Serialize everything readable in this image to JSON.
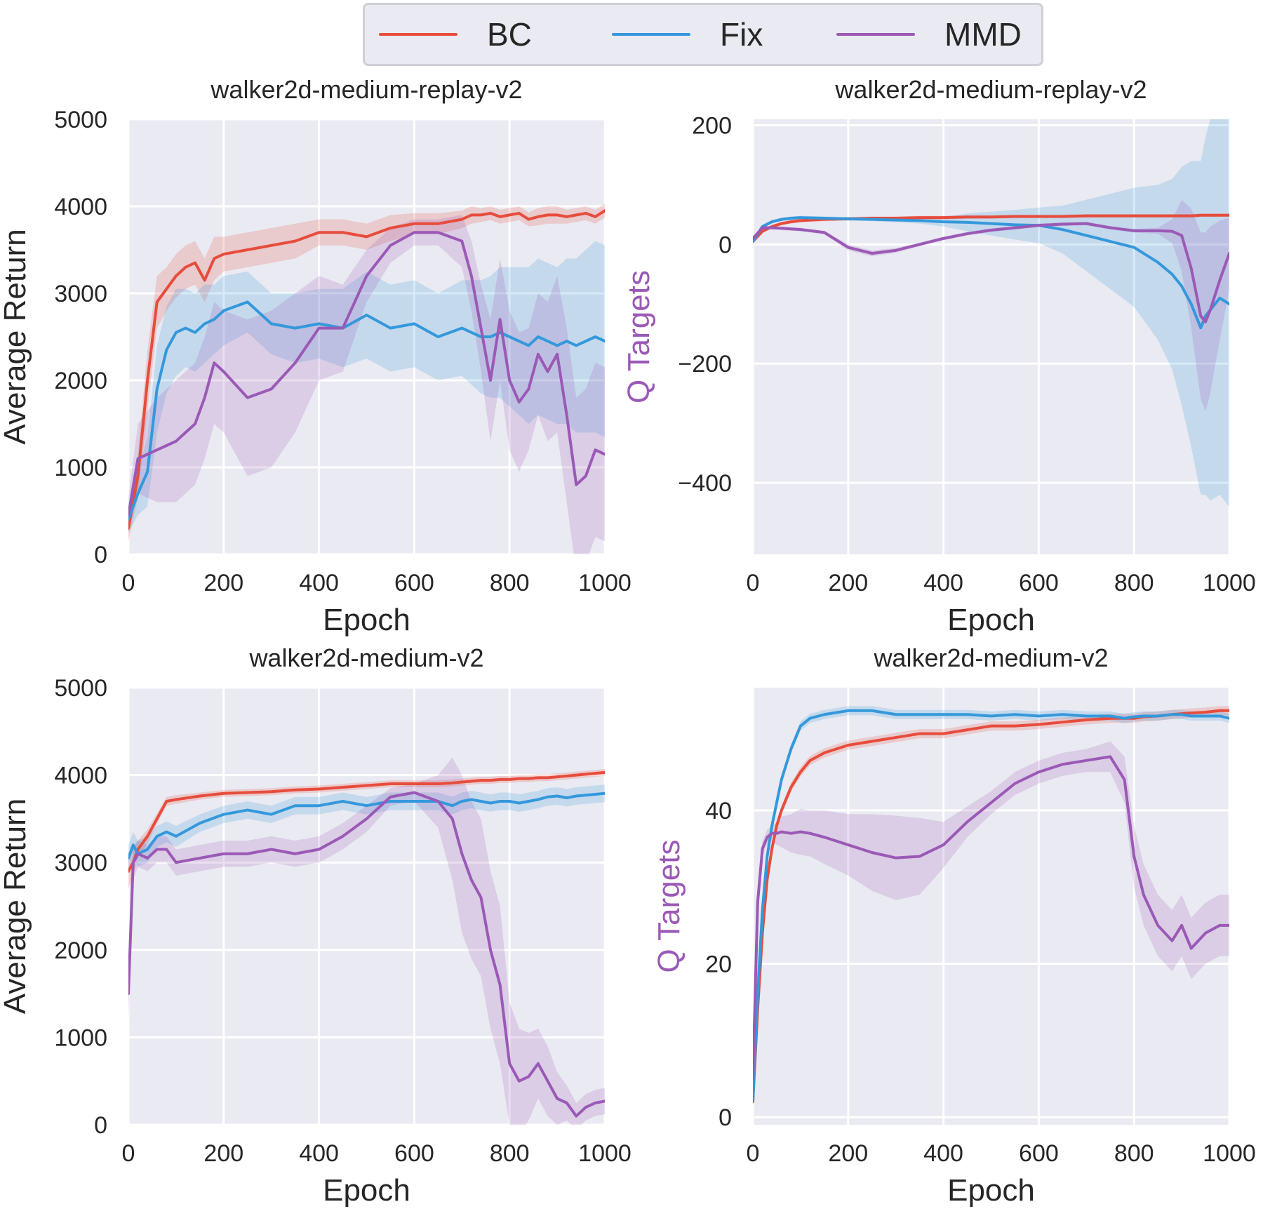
{
  "legend": {
    "placement": "top-center",
    "items": [
      {
        "label": "BC",
        "color": "#e74c3c"
      },
      {
        "label": "Fix",
        "color": "#3498db"
      },
      {
        "label": "MMD",
        "color": "#9b59b6"
      }
    ]
  },
  "chart_data": [
    {
      "type": "line",
      "title": "walker2d-medium-replay-v2",
      "xlabel": "Epoch",
      "ylabel": "Average Return",
      "ylabel_color": "#262626",
      "xlim": [
        0,
        1000
      ],
      "ylim": [
        0,
        5000
      ],
      "xticks": [
        0,
        200,
        400,
        600,
        800,
        1000
      ],
      "yticks": [
        0,
        1000,
        2000,
        3000,
        4000,
        5000
      ],
      "ytick_labels": [
        "0",
        "1000",
        "2000",
        "3000",
        "4000",
        "5000"
      ],
      "grid": true,
      "x": [
        0,
        20,
        40,
        60,
        80,
        100,
        120,
        140,
        160,
        180,
        200,
        250,
        300,
        350,
        400,
        450,
        500,
        550,
        600,
        650,
        700,
        720,
        740,
        760,
        780,
        800,
        820,
        840,
        860,
        880,
        900,
        920,
        940,
        960,
        980,
        1000
      ],
      "series": [
        {
          "name": "BC",
          "color": "#e74c3c",
          "values": [
            300,
            900,
            2000,
            2900,
            3050,
            3200,
            3300,
            3350,
            3150,
            3400,
            3450,
            3500,
            3550,
            3600,
            3700,
            3700,
            3650,
            3750,
            3800,
            3800,
            3850,
            3900,
            3900,
            3920,
            3880,
            3900,
            3920,
            3850,
            3880,
            3900,
            3900,
            3880,
            3900,
            3920,
            3880,
            3950
          ],
          "band": [
            150,
            250,
            350,
            300,
            250,
            250,
            250,
            250,
            250,
            250,
            200,
            200,
            200,
            200,
            150,
            150,
            150,
            150,
            120,
            120,
            100,
            100,
            80,
            80,
            80,
            80,
            80,
            80,
            100,
            100,
            100,
            80,
            80,
            80,
            80,
            80
          ]
        },
        {
          "name": "Fix",
          "color": "#3498db",
          "values": [
            400,
            700,
            950,
            1900,
            2350,
            2550,
            2600,
            2550,
            2650,
            2700,
            2800,
            2900,
            2650,
            2600,
            2650,
            2600,
            2750,
            2600,
            2650,
            2500,
            2600,
            2550,
            2500,
            2500,
            2550,
            2500,
            2450,
            2400,
            2500,
            2450,
            2400,
            2450,
            2400,
            2450,
            2500,
            2450
          ],
          "band": [
            150,
            250,
            400,
            500,
            500,
            500,
            450,
            450,
            450,
            400,
            400,
            350,
            350,
            400,
            400,
            450,
            500,
            500,
            500,
            500,
            550,
            600,
            650,
            700,
            750,
            800,
            850,
            900,
            900,
            900,
            900,
            950,
            1000,
            1050,
            1100,
            1100
          ]
        },
        {
          "name": "MMD",
          "color": "#9b59b6",
          "values": [
            450,
            1100,
            1150,
            1200,
            1250,
            1300,
            1400,
            1500,
            1800,
            2200,
            2100,
            1800,
            1900,
            2200,
            2600,
            2600,
            3200,
            3550,
            3700,
            3700,
            3600,
            3200,
            2600,
            2000,
            2700,
            2000,
            1750,
            1900,
            2300,
            2100,
            2300,
            1600,
            800,
            900,
            1200,
            1150
          ],
          "band": [
            200,
            400,
            500,
            600,
            650,
            700,
            700,
            700,
            700,
            700,
            700,
            900,
            900,
            800,
            600,
            500,
            300,
            200,
            150,
            150,
            300,
            400,
            500,
            700,
            700,
            800,
            800,
            700,
            700,
            800,
            900,
            1000,
            1000,
            1000,
            1000,
            1000
          ]
        }
      ]
    },
    {
      "type": "line",
      "title": "walker2d-medium-replay-v2",
      "xlabel": "Epoch",
      "ylabel": "Q Targets",
      "ylabel_color": "#9b59b6",
      "xlim": [
        0,
        1000
      ],
      "ylim": [
        -520,
        210
      ],
      "xticks": [
        0,
        200,
        400,
        600,
        800,
        1000
      ],
      "yticks": [
        -400,
        -200,
        0,
        200
      ],
      "ytick_labels": [
        "−400",
        "−200",
        "0",
        "200"
      ],
      "grid": true,
      "x": [
        0,
        20,
        40,
        60,
        80,
        100,
        150,
        200,
        250,
        300,
        350,
        400,
        450,
        500,
        550,
        600,
        650,
        700,
        750,
        800,
        850,
        880,
        900,
        920,
        940,
        950,
        960,
        980,
        1000
      ],
      "series": [
        {
          "name": "BC",
          "color": "#e74c3c",
          "values": [
            5,
            22,
            30,
            35,
            38,
            40,
            42,
            43,
            44,
            44,
            45,
            45,
            46,
            46,
            47,
            47,
            47,
            48,
            48,
            48,
            48,
            48,
            48,
            48,
            49,
            49,
            49,
            49,
            49
          ],
          "band": [
            3,
            3,
            3,
            3,
            3,
            3,
            3,
            3,
            3,
            3,
            3,
            3,
            3,
            3,
            3,
            3,
            3,
            3,
            3,
            3,
            3,
            3,
            3,
            3,
            3,
            3,
            3,
            3,
            3
          ]
        },
        {
          "name": "Fix",
          "color": "#3498db",
          "values": [
            5,
            30,
            38,
            42,
            44,
            45,
            44,
            43,
            42,
            41,
            40,
            38,
            37,
            35,
            33,
            32,
            25,
            15,
            5,
            -5,
            -30,
            -50,
            -70,
            -100,
            -140,
            -120,
            -110,
            -90,
            -100
          ],
          "band": [
            3,
            3,
            3,
            3,
            3,
            3,
            3,
            3,
            3,
            4,
            5,
            8,
            15,
            20,
            25,
            30,
            40,
            60,
            80,
            100,
            130,
            160,
            200,
            240,
            280,
            300,
            320,
            330,
            340
          ]
        },
        {
          "name": "MMD",
          "color": "#9b59b6",
          "values": [
            10,
            28,
            28,
            27,
            26,
            25,
            20,
            -5,
            -15,
            -10,
            0,
            10,
            18,
            24,
            28,
            32,
            34,
            35,
            28,
            23,
            23,
            22,
            15,
            -40,
            -120,
            -130,
            -110,
            -60,
            -15
          ],
          "band": [
            3,
            3,
            3,
            3,
            3,
            3,
            3,
            5,
            5,
            4,
            3,
            3,
            3,
            3,
            3,
            3,
            3,
            3,
            3,
            3,
            5,
            20,
            60,
            100,
            140,
            150,
            140,
            100,
            60
          ]
        }
      ]
    },
    {
      "type": "line",
      "title": "walker2d-medium-v2",
      "xlabel": "Epoch",
      "ylabel": "Average Return",
      "ylabel_color": "#262626",
      "xlim": [
        0,
        1000
      ],
      "ylim": [
        0,
        5000
      ],
      "xticks": [
        0,
        200,
        400,
        600,
        800,
        1000
      ],
      "yticks": [
        0,
        1000,
        2000,
        3000,
        4000,
        5000
      ],
      "ytick_labels": [
        "0",
        "1000",
        "2000",
        "3000",
        "4000",
        "5000"
      ],
      "grid": true,
      "x": [
        0,
        10,
        20,
        40,
        60,
        80,
        100,
        150,
        200,
        250,
        300,
        350,
        400,
        450,
        500,
        550,
        600,
        650,
        680,
        700,
        720,
        740,
        760,
        780,
        800,
        820,
        840,
        860,
        880,
        900,
        920,
        940,
        960,
        980,
        1000
      ],
      "series": [
        {
          "name": "BC",
          "color": "#e74c3c",
          "values": [
            2900,
            3000,
            3150,
            3300,
            3500,
            3700,
            3720,
            3760,
            3790,
            3800,
            3810,
            3830,
            3840,
            3860,
            3880,
            3900,
            3900,
            3900,
            3910,
            3920,
            3930,
            3940,
            3940,
            3950,
            3950,
            3960,
            3960,
            3970,
            3970,
            3980,
            3990,
            4000,
            4010,
            4020,
            4030
          ],
          "band": [
            200,
            150,
            100,
            80,
            60,
            50,
            50,
            40,
            40,
            40,
            40,
            40,
            40,
            40,
            40,
            40,
            40,
            40,
            40,
            40,
            40,
            40,
            40,
            40,
            40,
            40,
            40,
            40,
            40,
            40,
            40,
            40,
            40,
            40,
            40
          ]
        },
        {
          "name": "Fix",
          "color": "#3498db",
          "values": [
            3050,
            3200,
            3100,
            3150,
            3300,
            3350,
            3300,
            3450,
            3550,
            3600,
            3550,
            3650,
            3650,
            3700,
            3650,
            3700,
            3700,
            3700,
            3650,
            3700,
            3720,
            3700,
            3680,
            3700,
            3700,
            3680,
            3700,
            3720,
            3750,
            3760,
            3740,
            3760,
            3770,
            3780,
            3790
          ],
          "band": [
            150,
            150,
            150,
            150,
            120,
            120,
            120,
            100,
            100,
            100,
            100,
            100,
            100,
            100,
            100,
            100,
            100,
            100,
            100,
            100,
            100,
            100,
            100,
            100,
            100,
            100,
            100,
            100,
            100,
            100,
            100,
            100,
            100,
            100,
            100
          ]
        },
        {
          "name": "MMD",
          "color": "#9b59b6",
          "values": [
            1500,
            3000,
            3100,
            3050,
            3150,
            3150,
            3000,
            3050,
            3100,
            3100,
            3150,
            3100,
            3150,
            3300,
            3500,
            3750,
            3800,
            3700,
            3500,
            3100,
            2800,
            2600,
            2000,
            1600,
            700,
            500,
            550,
            700,
            500,
            300,
            250,
            100,
            200,
            250,
            270
          ],
          "band": [
            300,
            200,
            150,
            150,
            150,
            150,
            150,
            150,
            150,
            150,
            150,
            150,
            150,
            150,
            150,
            100,
            100,
            300,
            700,
            900,
            900,
            900,
            900,
            900,
            700,
            600,
            500,
            400,
            400,
            300,
            200,
            150,
            150,
            150,
            150
          ]
        }
      ]
    },
    {
      "type": "line",
      "title": "walker2d-medium-v2",
      "xlabel": "Epoch",
      "ylabel": "Q Targets",
      "ylabel_color": "#9b59b6",
      "xlim": [
        0,
        1000
      ],
      "ylim": [
        -1,
        56
      ],
      "xticks": [
        0,
        200,
        400,
        600,
        800,
        1000
      ],
      "yticks": [
        0,
        20,
        40
      ],
      "ytick_labels": [
        "0",
        "20",
        "40"
      ],
      "grid": true,
      "x": [
        0,
        10,
        20,
        30,
        40,
        50,
        60,
        80,
        100,
        120,
        150,
        200,
        250,
        300,
        350,
        400,
        450,
        500,
        550,
        600,
        650,
        700,
        750,
        780,
        800,
        820,
        850,
        880,
        900,
        920,
        950,
        980,
        1000
      ],
      "series": [
        {
          "name": "BC",
          "color": "#e74c3c",
          "values": [
            2,
            14,
            24,
            31,
            35,
            38,
            40,
            43,
            45,
            46.5,
            47.5,
            48.5,
            49,
            49.5,
            50,
            50,
            50.5,
            51,
            51,
            51.2,
            51.5,
            51.8,
            52,
            52,
            52,
            52.2,
            52.3,
            52.5,
            52.6,
            52.7,
            52.8,
            53,
            53
          ],
          "band": [
            0.5,
            0.6,
            0.6,
            0.6,
            0.6,
            0.6,
            0.6,
            0.6,
            0.6,
            0.6,
            0.6,
            0.6,
            0.6,
            0.6,
            0.6,
            0.6,
            0.6,
            0.6,
            0.6,
            0.6,
            0.6,
            0.6,
            0.6,
            0.6,
            0.6,
            0.6,
            0.6,
            0.6,
            0.6,
            0.6,
            0.6,
            0.6,
            0.6
          ]
        },
        {
          "name": "Fix",
          "color": "#3498db",
          "values": [
            2,
            16,
            27,
            34,
            38,
            41,
            44,
            48,
            51,
            52,
            52.5,
            53,
            53,
            52.5,
            52.5,
            52.5,
            52.5,
            52.3,
            52.5,
            52.3,
            52.5,
            52.3,
            52.3,
            52,
            52.2,
            52.3,
            52.3,
            52.5,
            52.5,
            52.3,
            52.3,
            52.3,
            52
          ],
          "band": [
            0.5,
            0.6,
            0.6,
            0.6,
            0.6,
            0.6,
            0.6,
            0.6,
            0.6,
            0.6,
            0.6,
            0.6,
            0.6,
            0.6,
            0.6,
            0.6,
            0.6,
            0.6,
            0.6,
            0.6,
            0.6,
            0.6,
            0.6,
            0.6,
            0.6,
            0.6,
            0.6,
            0.6,
            0.6,
            0.6,
            0.6,
            0.6,
            0.6
          ]
        },
        {
          "name": "MMD",
          "color": "#9b59b6",
          "values": [
            5,
            28,
            35,
            36.5,
            37,
            37,
            37.2,
            37,
            37.2,
            37,
            36.5,
            35.5,
            34.5,
            33.8,
            34,
            35.5,
            38.5,
            41,
            43.5,
            45,
            46,
            46.5,
            47,
            44,
            34,
            29,
            25,
            23,
            25,
            22,
            24,
            25,
            25
          ],
          "band": [
            1,
            1,
            1,
            1,
            1,
            1.5,
            2,
            2.5,
            3,
            3,
            3.5,
            4,
            5,
            5.5,
            5,
            3,
            2,
            1.5,
            1.5,
            1.5,
            1.5,
            1.5,
            2,
            3,
            4,
            4,
            4,
            4,
            4,
            4,
            4,
            4,
            4
          ]
        }
      ]
    }
  ]
}
